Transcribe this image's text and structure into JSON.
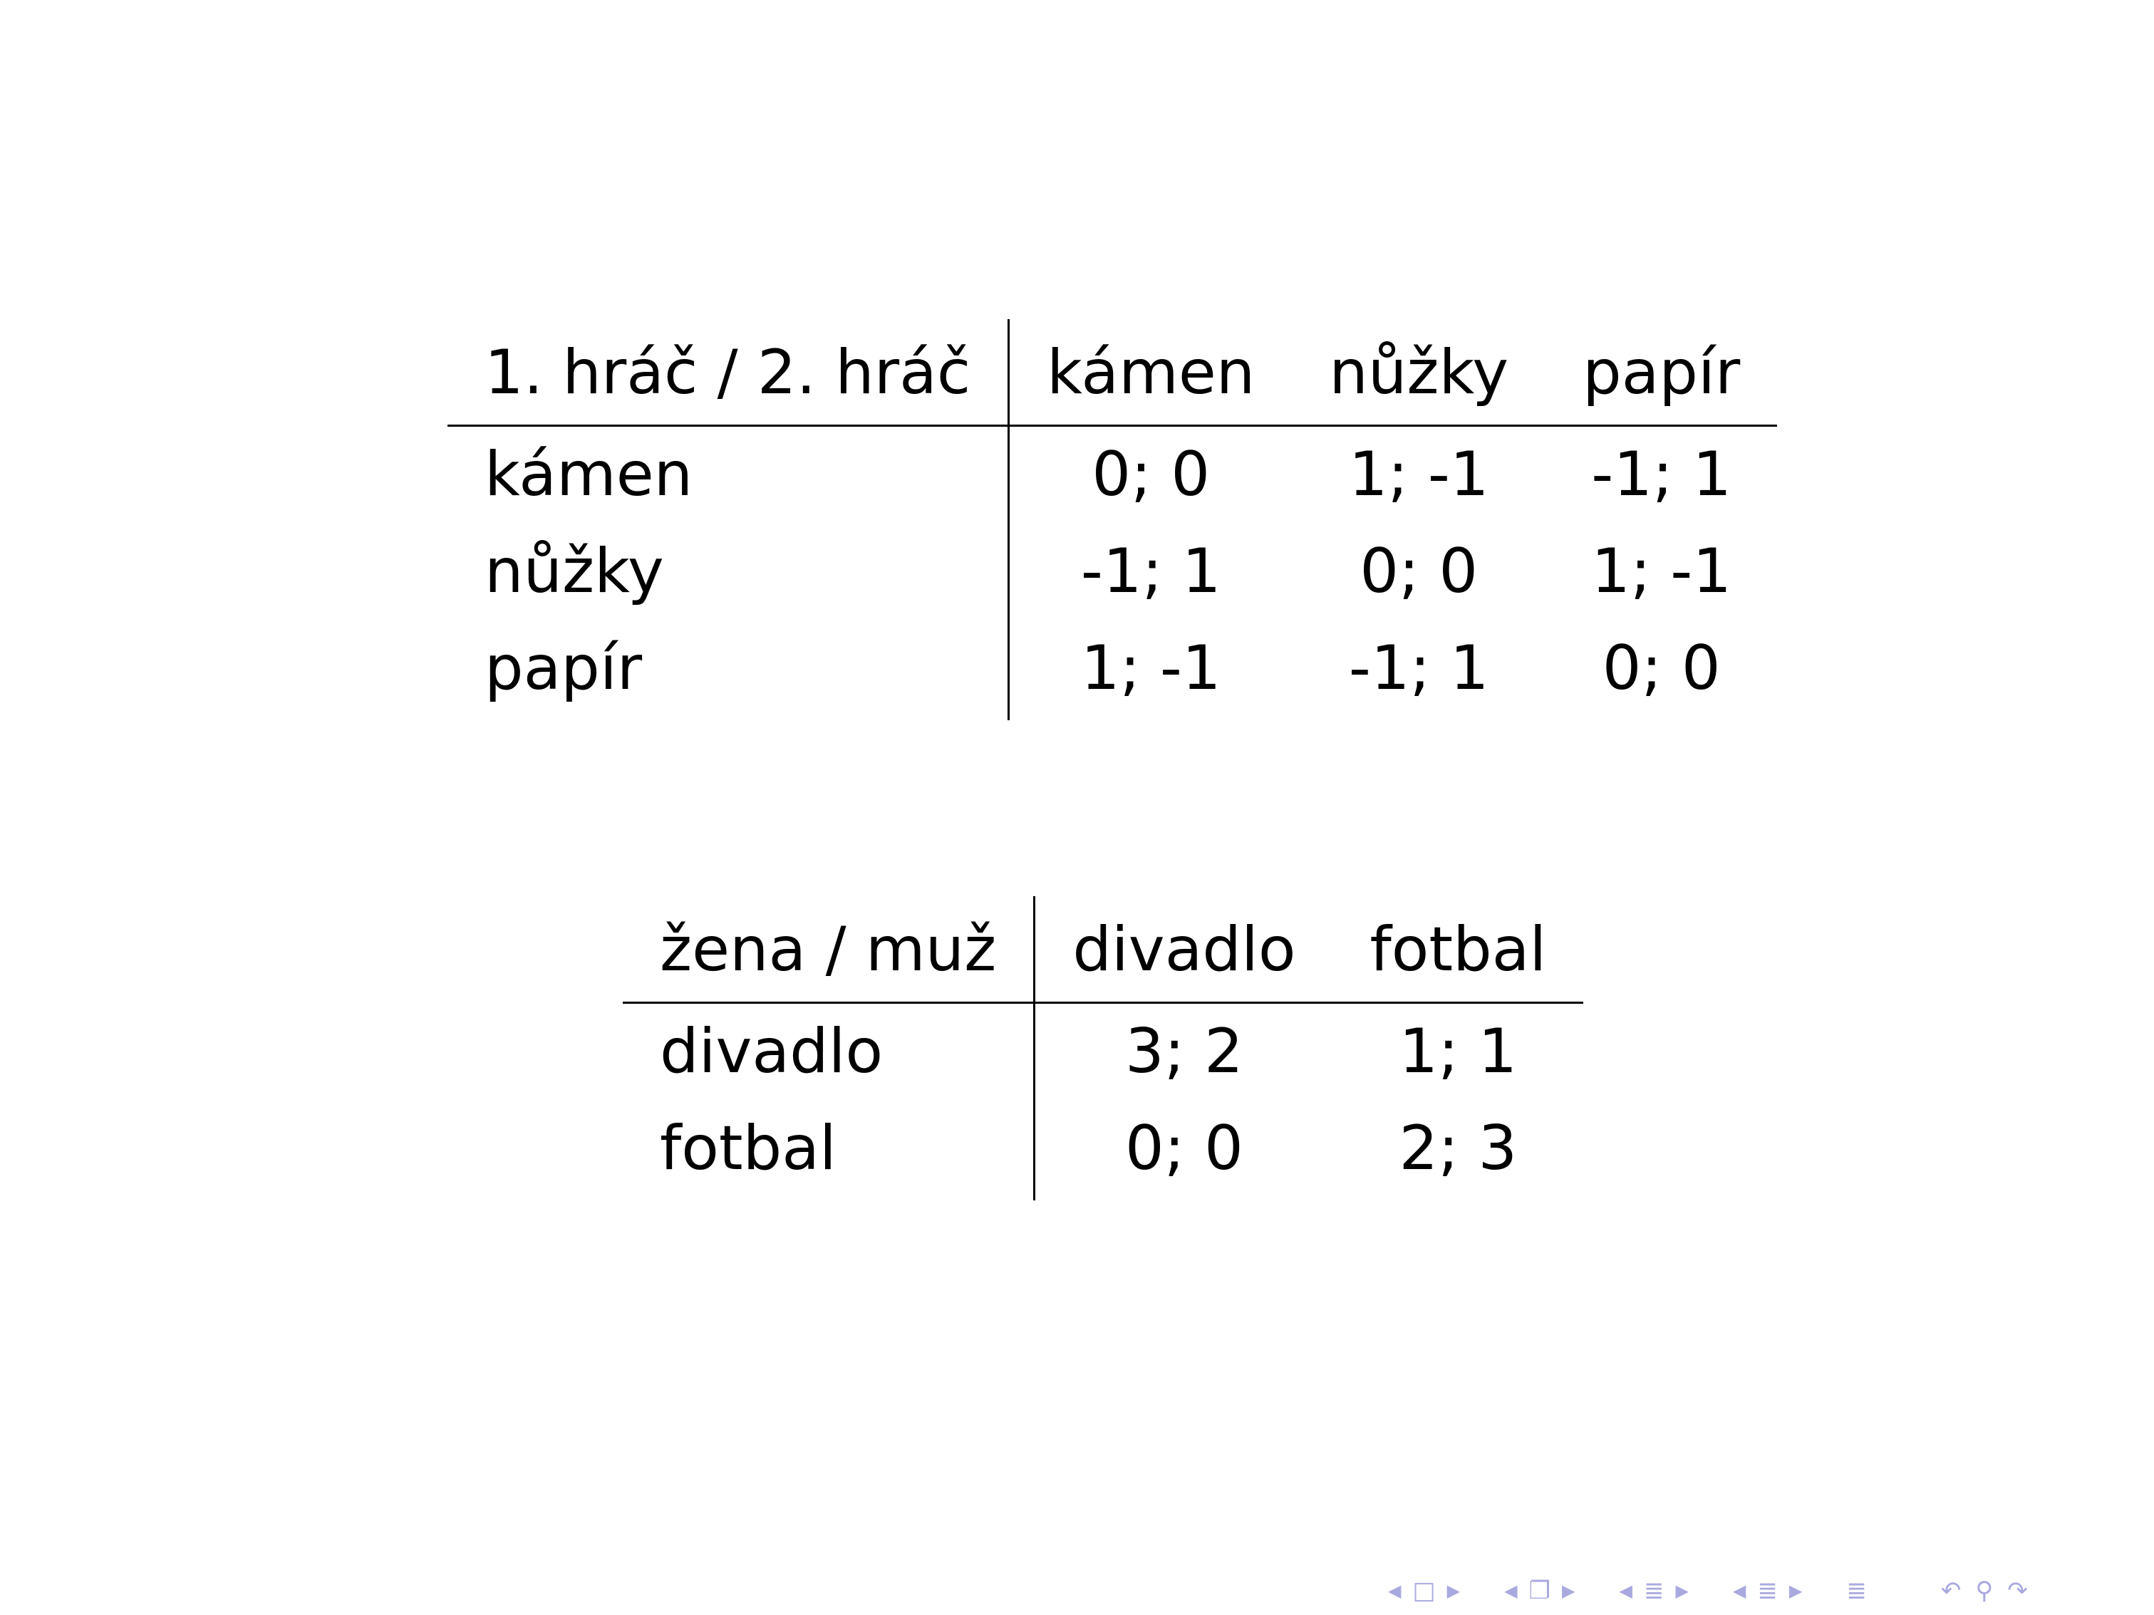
{
  "table_rps": {
    "corner": "1. hráč / 2. hráč",
    "columns": [
      "kámen",
      "nůžky",
      "papír"
    ],
    "rows": [
      {
        "label": "kámen",
        "cells": [
          "0; 0",
          "1; -1",
          "-1; 1"
        ]
      },
      {
        "label": "nůžky",
        "cells": [
          "-1; 1",
          "0; 0",
          "1; -1"
        ]
      },
      {
        "label": "papír",
        "cells": [
          "1; -1",
          "-1; 1",
          "0; 0"
        ]
      }
    ]
  },
  "table_bos": {
    "corner": "žena / muž",
    "columns": [
      "divadlo",
      "fotbal"
    ],
    "rows": [
      {
        "label": "divadlo",
        "cells": [
          "3; 2",
          "1; 1"
        ]
      },
      {
        "label": "fotbal",
        "cells": [
          "0; 0",
          "2; 3"
        ]
      }
    ]
  },
  "navigation": {
    "color": "#a9a9e0",
    "icons": [
      "nav-prev-icon",
      "frame-icon",
      "nav-next-icon",
      "nav-prev-icon",
      "subsection-icon",
      "nav-next-icon",
      "nav-prev-icon",
      "section-icon",
      "nav-next-icon",
      "nav-prev-icon",
      "document-icon",
      "nav-next-icon",
      "appendix-icon",
      "back-icon",
      "search-icon",
      "forward-icon"
    ]
  }
}
